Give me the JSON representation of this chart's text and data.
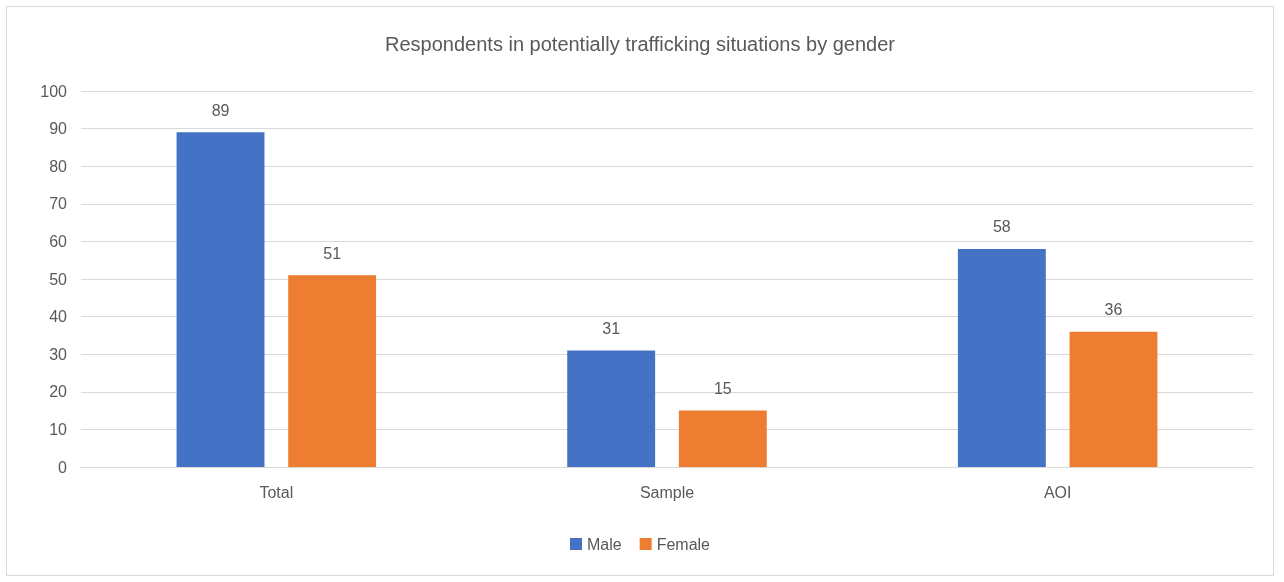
{
  "chart_data": {
    "type": "bar",
    "title": "Respondents in potentially trafficking situations by gender",
    "categories": [
      "Total",
      "Sample",
      "AOI"
    ],
    "series": [
      {
        "name": "Male",
        "color": "#4472c4",
        "values": [
          89,
          31,
          58
        ]
      },
      {
        "name": "Female",
        "color": "#ed7d31",
        "values": [
          51,
          15,
          36
        ]
      }
    ],
    "ylim": [
      0,
      100
    ],
    "yticks": [
      0,
      10,
      20,
      30,
      40,
      50,
      60,
      70,
      80,
      90,
      100
    ],
    "grid": "y",
    "legend": "bottom",
    "data_labels": true
  }
}
